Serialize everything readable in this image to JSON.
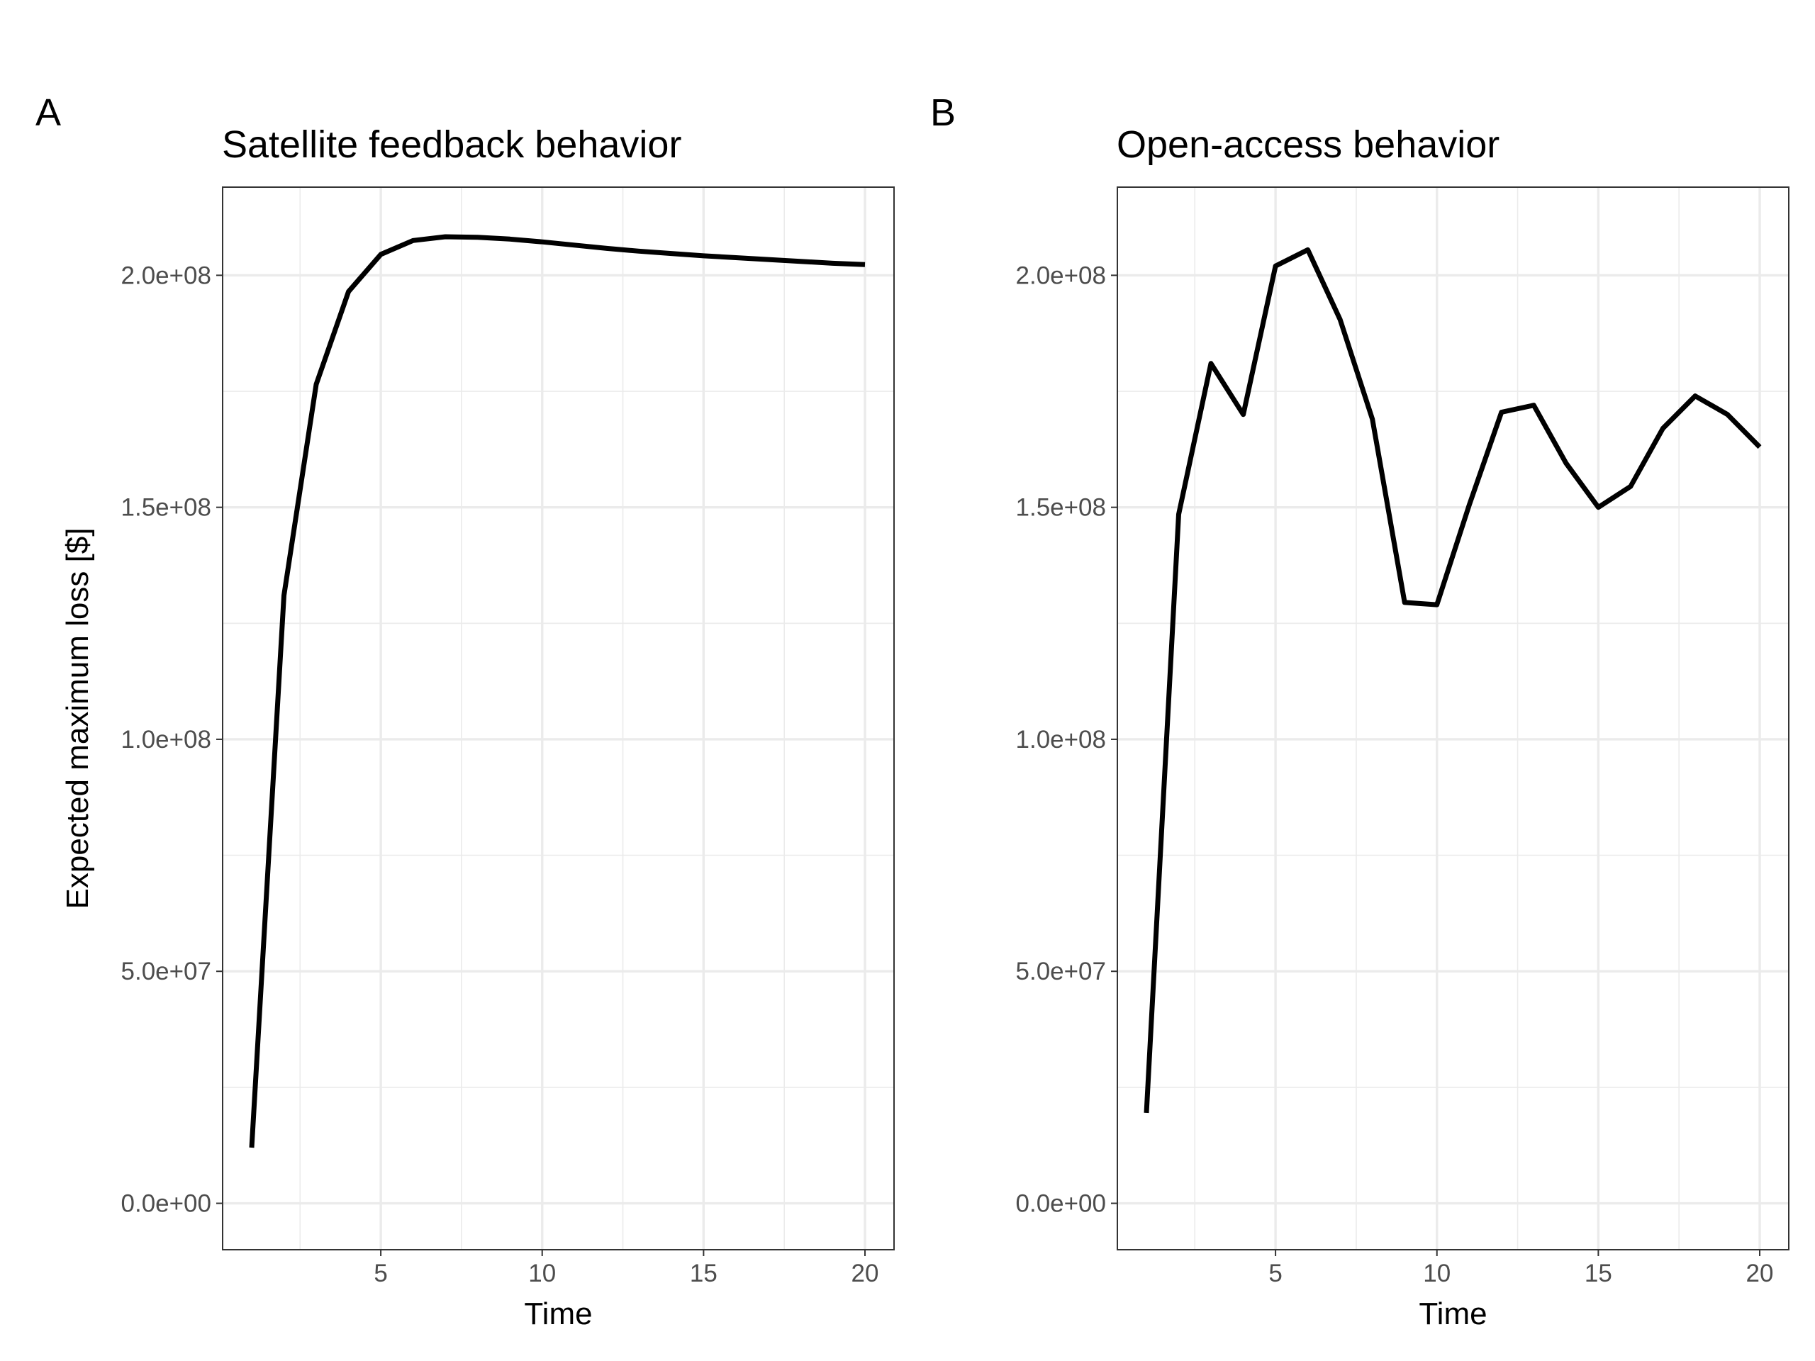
{
  "chart_data": [
    {
      "type": "line",
      "panel_label": "A",
      "title": "Satellite feedback behavior",
      "xlabel": "Time",
      "ylabel": "Expected maximum loss [$]",
      "x": [
        1,
        2,
        3,
        4,
        5,
        6,
        7,
        8,
        9,
        10,
        11,
        12,
        13,
        14,
        15,
        16,
        17,
        18,
        19,
        20
      ],
      "values": [
        12000000,
        131000000,
        176500000,
        196500000,
        204500000,
        207500000,
        208300000,
        208200000,
        207800000,
        207200000,
        206500000,
        205800000,
        205200000,
        204700000,
        204200000,
        203800000,
        203400000,
        203000000,
        202600000,
        202300000
      ],
      "xlim": [
        0.1,
        20.9
      ],
      "ylim": [
        -10000000,
        219000000
      ],
      "xticks": [
        5,
        10,
        15,
        20
      ],
      "xtick_labels": [
        "5",
        "10",
        "15",
        "20"
      ],
      "yticks": [
        0,
        50000000,
        100000000,
        150000000,
        200000000
      ],
      "ytick_labels": [
        "0.0e+00",
        "5.0e+07",
        "1.0e+08",
        "1.5e+08",
        "2.0e+08"
      ],
      "grid": true,
      "line_color": "#000000"
    },
    {
      "type": "line",
      "panel_label": "B",
      "title": "Open-access behavior",
      "xlabel": "Time",
      "ylabel": "",
      "x": [
        1,
        2,
        3,
        4,
        5,
        6,
        7,
        8,
        9,
        10,
        11,
        12,
        13,
        14,
        15,
        16,
        17,
        18,
        19,
        20
      ],
      "values": [
        19500000,
        148500000,
        181000000,
        170000000,
        202000000,
        205500000,
        190500000,
        169000000,
        129500000,
        129000000,
        150500000,
        170500000,
        172000000,
        159500000,
        150000000,
        154500000,
        167000000,
        174000000,
        170000000,
        163000000
      ],
      "xlim": [
        0.1,
        20.9
      ],
      "ylim": [
        -10000000,
        219000000
      ],
      "xticks": [
        5,
        10,
        15,
        20
      ],
      "xtick_labels": [
        "5",
        "10",
        "15",
        "20"
      ],
      "yticks": [
        0,
        50000000,
        100000000,
        150000000,
        200000000
      ],
      "ytick_labels": [
        "0.0e+00",
        "5.0e+07",
        "1.0e+08",
        "1.5e+08",
        "2.0e+08"
      ],
      "grid": true,
      "line_color": "#000000"
    }
  ]
}
